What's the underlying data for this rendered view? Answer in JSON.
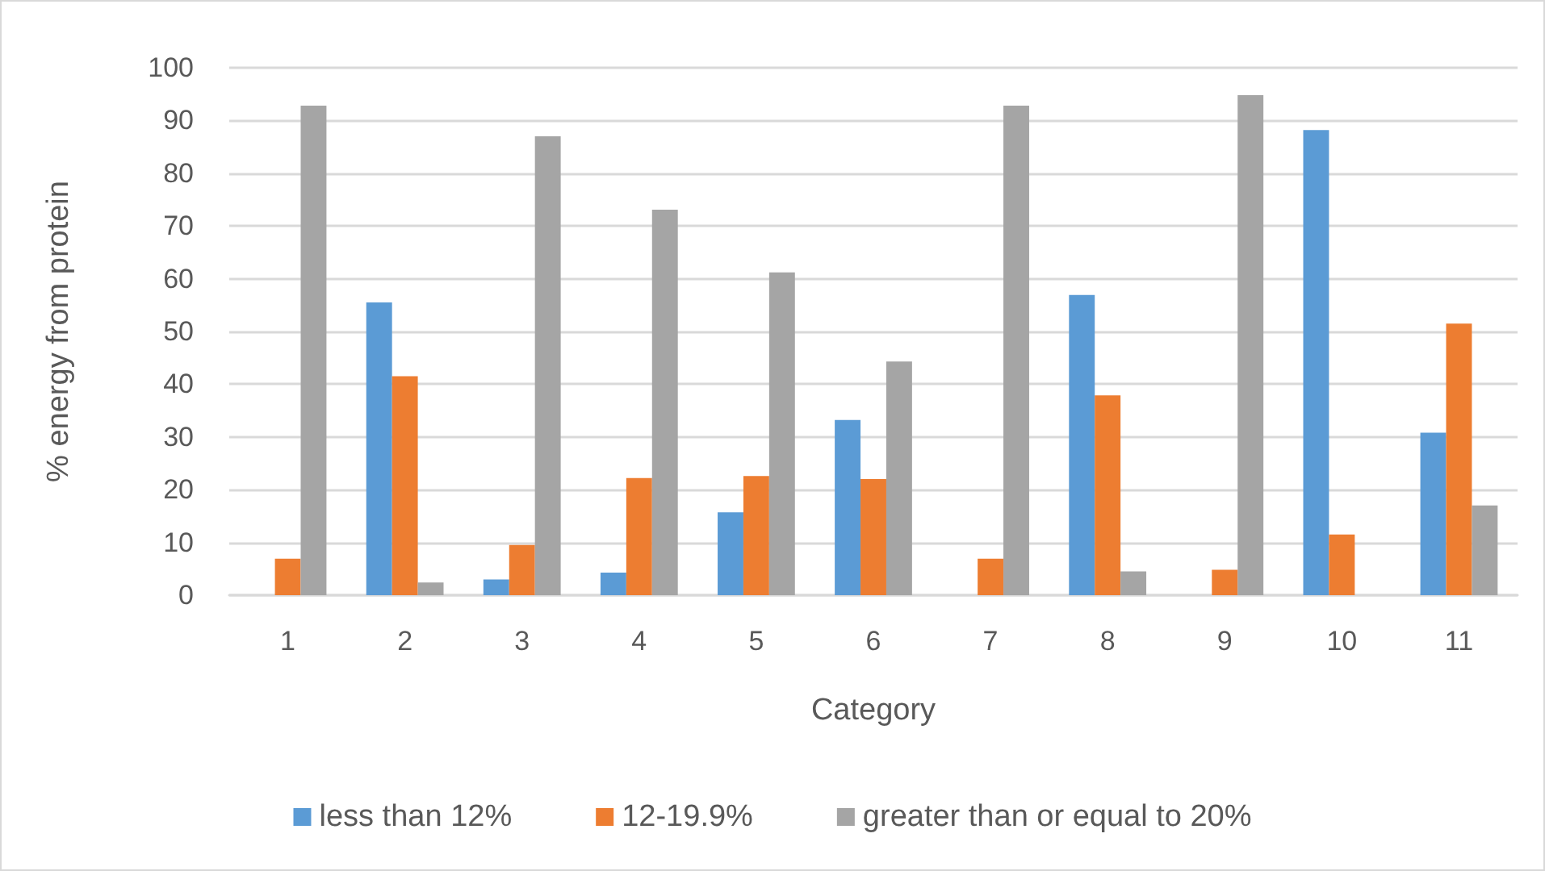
{
  "chart_data": {
    "type": "bar",
    "xlabel": "Category",
    "ylabel": "% energy from protein",
    "categories": [
      "1",
      "2",
      "3",
      "4",
      "5",
      "6",
      "7",
      "8",
      "9",
      "10",
      "11"
    ],
    "series": [
      {
        "name": "less than 12%",
        "color": "#5b9bd5",
        "values": [
          0,
          55.5,
          3.0,
          4.3,
          15.7,
          33.2,
          0,
          56.9,
          0,
          88.2,
          30.8
        ]
      },
      {
        "name": "12-19.9%",
        "color": "#ed7d31",
        "values": [
          6.9,
          41.5,
          9.5,
          22.2,
          22.6,
          22.0,
          6.9,
          37.9,
          4.8,
          11.5,
          51.5
        ]
      },
      {
        "name": "greater than or equal to 20%",
        "color": "#a5a5a5",
        "values": [
          92.8,
          2.4,
          87.0,
          73.1,
          61.2,
          44.3,
          92.8,
          4.5,
          94.8,
          0,
          17.0
        ]
      }
    ],
    "ylim": [
      0,
      100
    ],
    "yticks": [
      0,
      10,
      20,
      30,
      40,
      50,
      60,
      70,
      80,
      90,
      100
    ],
    "grid": "y",
    "legend": "bottom"
  }
}
